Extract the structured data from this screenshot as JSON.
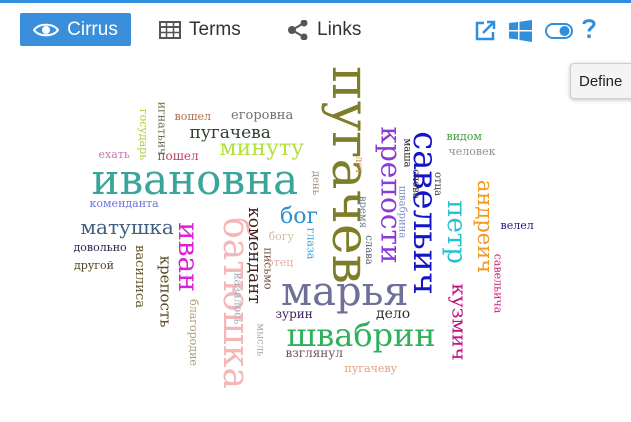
{
  "toolbar": {
    "tabs": [
      {
        "label": "Cirrus",
        "icon": "eye-icon"
      },
      {
        "label": "Terms",
        "icon": "table-icon"
      },
      {
        "label": "Links",
        "icon": "share-icon"
      }
    ],
    "tools": [
      "external-link-icon",
      "windows-icon",
      "toggle-icon",
      "help-icon"
    ],
    "accent": "#3a8fdc"
  },
  "tooltip": {
    "text": "Define"
  },
  "cloud": {
    "words": [
      {
        "text": "пугачев",
        "color": "#7d7d2a",
        "rot": 90
      },
      {
        "text": "ивановна",
        "color": "#3aa59a",
        "rot": 0
      },
      {
        "text": "марья",
        "color": "#6f6f9a",
        "rot": 0
      },
      {
        "text": "батюшка",
        "color": "#f4b6b6",
        "rot": 90
      },
      {
        "text": "савельич",
        "color": "#1515c8",
        "rot": 90
      },
      {
        "text": "швабрин",
        "color": "#2fb05a",
        "rot": 0
      },
      {
        "text": "крепости",
        "color": "#8a3ad6",
        "rot": 90
      },
      {
        "text": "иван",
        "color": "#e020d8",
        "rot": 90
      },
      {
        "text": "петр",
        "color": "#23c2d4",
        "rot": 90
      },
      {
        "text": "кузмич",
        "color": "#c01080",
        "rot": 90
      },
      {
        "text": "андреич",
        "color": "#f09a20",
        "rot": 90
      },
      {
        "text": "минуту",
        "color": "#b4e040",
        "rot": 0
      },
      {
        "text": "бог",
        "color": "#3090d0",
        "rot": 0
      },
      {
        "text": "матушка",
        "color": "#406080",
        "rot": 0
      },
      {
        "text": "комендант",
        "color": "#402020",
        "rot": 90
      },
      {
        "text": "пугачева",
        "color": "#304030",
        "rot": 0
      },
      {
        "text": "крепость",
        "color": "#5a4a20",
        "rot": 90
      },
      {
        "text": "василиса",
        "color": "#6a5a30",
        "rot": 90
      },
      {
        "text": "дело",
        "color": "#303030",
        "rot": 0
      },
      {
        "text": "егоровна",
        "color": "#707070",
        "rot": 0
      },
      {
        "text": "зурин",
        "color": "#3a1a5a",
        "rot": 0
      },
      {
        "text": "взглянул",
        "color": "#705060",
        "rot": 0
      },
      {
        "text": "пошел",
        "color": "#c04060",
        "rot": 0
      },
      {
        "text": "вошел",
        "color": "#b07050",
        "rot": 0
      },
      {
        "text": "ехать",
        "color": "#c080b0",
        "rot": 0
      },
      {
        "text": "комендантa",
        "color": "#7070e0",
        "rot": 0
      },
      {
        "text": "довольно",
        "color": "#302050",
        "rot": 0
      },
      {
        "text": "другой",
        "color": "#504020",
        "rot": 0
      },
      {
        "text": "государь",
        "color": "#b0d040",
        "rot": 90
      },
      {
        "text": "игнатьич",
        "color": "#607050",
        "rot": 90
      },
      {
        "text": "благородие",
        "color": "#b0a080",
        "rot": 90
      },
      {
        "text": "казалось",
        "color": "#a0b0c0",
        "rot": 90
      },
      {
        "text": "мысль",
        "color": "#a0b0a0",
        "rot": 90
      },
      {
        "text": "письмо",
        "color": "#705040",
        "rot": 90
      },
      {
        "text": "отец",
        "color": "#e0b0a0",
        "rot": 0
      },
      {
        "text": "богу",
        "color": "#d0c0a0",
        "rot": 0
      },
      {
        "text": "глаза",
        "color": "#40a0e0",
        "rot": 90
      },
      {
        "text": "день",
        "color": "#a09080",
        "rot": 90
      },
      {
        "text": "лет",
        "color": "#d09040",
        "rot": 90
      },
      {
        "text": "время",
        "color": "#708090",
        "rot": 90
      },
      {
        "text": "слава",
        "color": "#506070",
        "rot": 90
      },
      {
        "text": "маша",
        "color": "#202020",
        "rot": 90
      },
      {
        "text": "швабрина",
        "color": "#8090c0",
        "rot": 90
      },
      {
        "text": "слова",
        "color": "#303030",
        "rot": 90
      },
      {
        "text": "отца",
        "color": "#404040",
        "rot": 90
      },
      {
        "text": "видом",
        "color": "#40a040",
        "rot": 0
      },
      {
        "text": "человек",
        "color": "#909090",
        "rot": 0
      },
      {
        "text": "велел",
        "color": "#202080",
        "rot": 0
      },
      {
        "text": "савельича",
        "color": "#d02080",
        "rot": 90
      },
      {
        "text": "пугачеву",
        "color": "#e0a080",
        "rot": 0
      }
    ]
  }
}
